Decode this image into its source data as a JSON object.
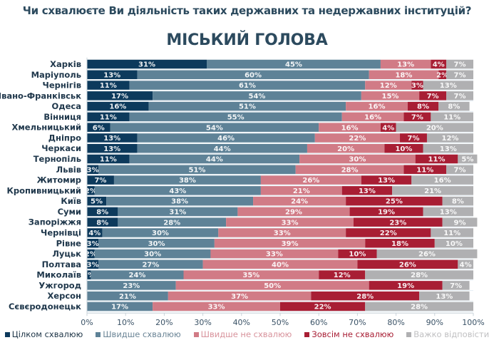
{
  "header": {
    "question": "Чи схвалюєте Ви діяльність таких державних та недержавних інституцій?",
    "subtitle": "МІСЬКИЙ ГОЛОВА"
  },
  "chart_data": {
    "type": "bar",
    "orientation": "horizontal",
    "stacked": true,
    "title": "МІСЬКИЙ ГОЛОВА",
    "xlabel": "",
    "ylabel": "",
    "xlim": [
      0,
      100
    ],
    "x_ticks": [
      "0%",
      "10%",
      "20%",
      "30%",
      "40%",
      "50%",
      "60%",
      "70%",
      "80%",
      "90%",
      "100%"
    ],
    "legend_position": "bottom",
    "grid": false,
    "categories": [
      "Харків",
      "Маріуполь",
      "Чернігів",
      "Івано-Франківськ",
      "Одеса",
      "Вінниця",
      "Хмельницький",
      "Дніпро",
      "Черкаси",
      "Тернопіль",
      "Львів",
      "Житомир",
      "Кропивницький",
      "Київ",
      "Суми",
      "Запоріжжя",
      "Чернівці",
      "Рівне",
      "Луцьк",
      "Полтава",
      "Миколаїв",
      "Ужгород",
      "Херсон",
      "Сєвєродонецьк"
    ],
    "series": [
      {
        "name": "Цілком схвалюю",
        "color": "#0d3a5c",
        "values": [
          31,
          13,
          11,
          17,
          16,
          11,
          6,
          13,
          13,
          11,
          3,
          7,
          2,
          5,
          8,
          8,
          4,
          3,
          2,
          3,
          1,
          0,
          0,
          0
        ]
      },
      {
        "name": "Швидше схвалюю",
        "color": "#5e8297",
        "values": [
          45,
          60,
          61,
          54,
          51,
          55,
          54,
          46,
          44,
          44,
          51,
          38,
          43,
          38,
          31,
          28,
          30,
          30,
          30,
          27,
          24,
          23,
          21,
          17
        ]
      },
      {
        "name": "Швидше не схвалюю",
        "color": "#d17b86",
        "values": [
          13,
          18,
          12,
          15,
          16,
          16,
          16,
          22,
          20,
          30,
          28,
          26,
          21,
          24,
          29,
          33,
          33,
          39,
          33,
          40,
          35,
          50,
          37,
          33
        ]
      },
      {
        "name": "Зовсім не схвалюю",
        "color": "#a81e34",
        "values": [
          4,
          2,
          3,
          7,
          8,
          7,
          4,
          7,
          10,
          11,
          11,
          13,
          13,
          25,
          19,
          23,
          22,
          18,
          10,
          26,
          12,
          19,
          28,
          22
        ]
      },
      {
        "name": "Важко відповісти",
        "color": "#b0b0b2",
        "values": [
          7,
          7,
          13,
          7,
          8,
          11,
          20,
          12,
          13,
          5,
          7,
          16,
          21,
          8,
          13,
          9,
          11,
          10,
          26,
          4,
          28,
          7,
          13,
          28
        ]
      }
    ]
  }
}
